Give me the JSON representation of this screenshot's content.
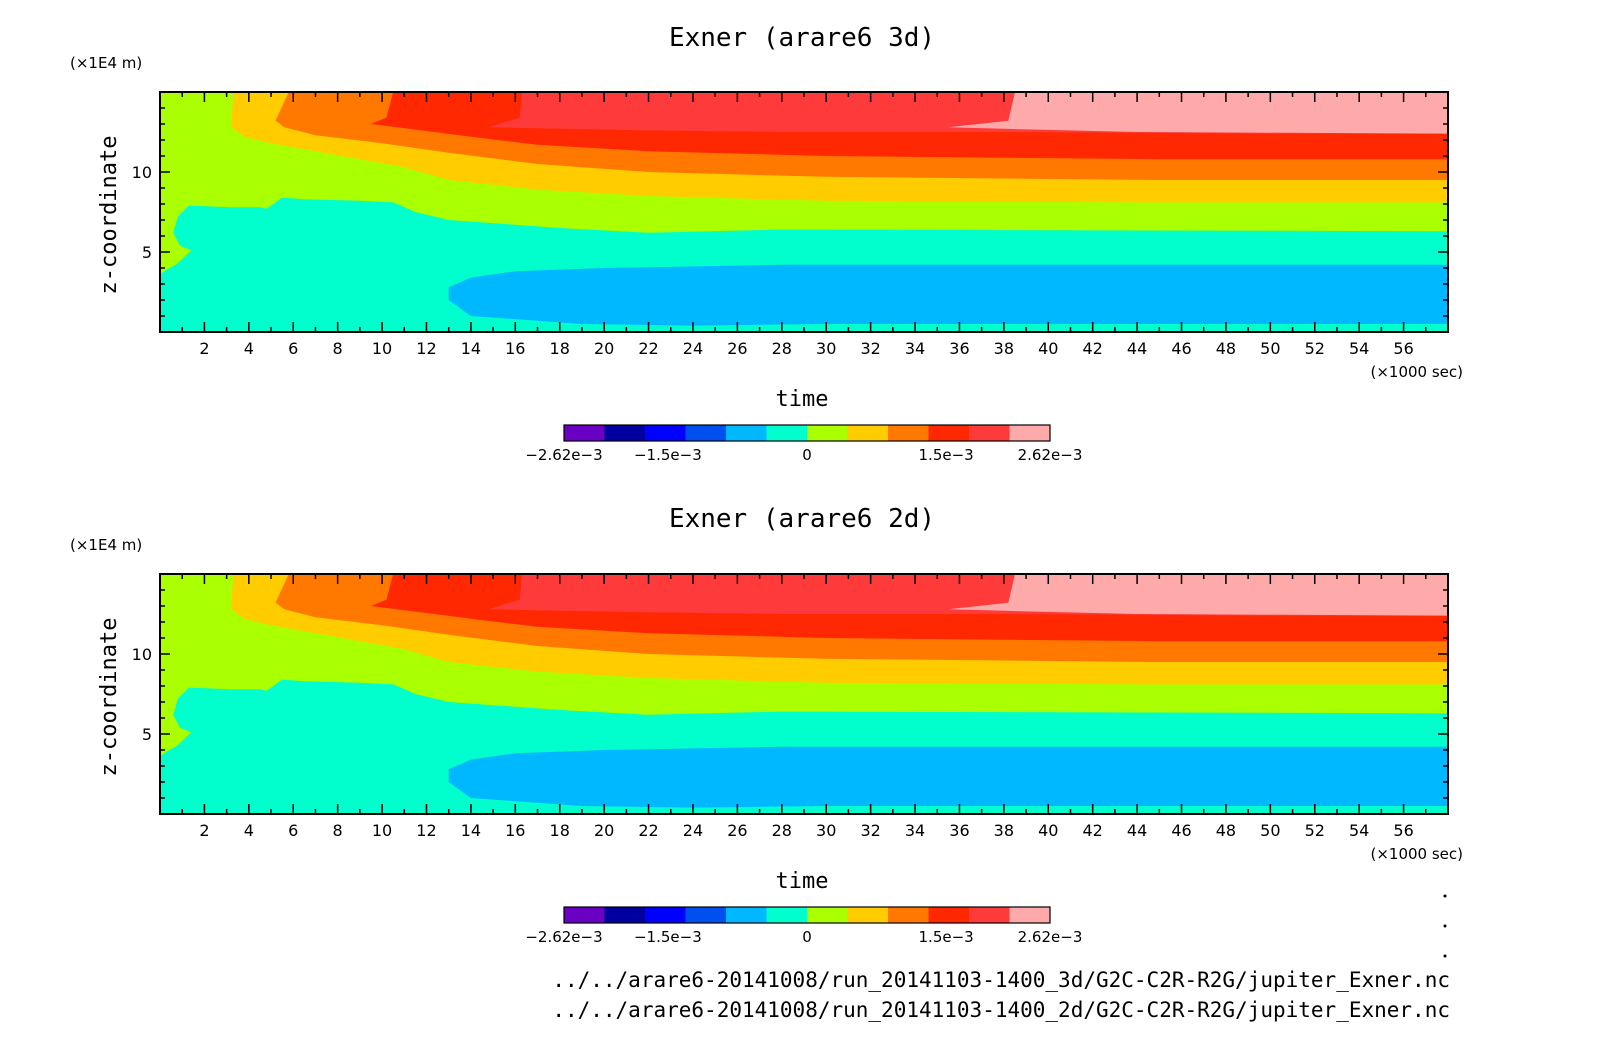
{
  "palette": [
    "#6a00c4",
    "#0000a0",
    "#0000ff",
    "#0050f0",
    "#00b8ff",
    "#00ffcc",
    "#aaff00",
    "#ffcc00",
    "#ff7800",
    "#ff2800",
    "#ff3a3a",
    "#ffaaaa"
  ],
  "chart_data": [
    {
      "type": "heatmap",
      "title": "Exner (arare6 3d)",
      "xlabel": "time",
      "ylabel": "z-coordinate",
      "x_unit": "(×1000 sec)",
      "y_unit": "(×1E4 m)",
      "xlim": [
        0,
        58
      ],
      "ylim": [
        0,
        15
      ],
      "x_ticks": [
        "2",
        "4",
        "6",
        "8",
        "10",
        "12",
        "14",
        "16",
        "18",
        "20",
        "22",
        "24",
        "26",
        "28",
        "30",
        "32",
        "34",
        "36",
        "38",
        "40",
        "42",
        "44",
        "46",
        "48",
        "50",
        "52",
        "54",
        "56"
      ],
      "y_ticks": [
        "5",
        "10"
      ],
      "colorbar": {
        "range": [
          -0.00262,
          0.00262
        ],
        "labels": [
          "-2.62e-3",
          "-1.5e-3",
          "0",
          "1.5e-3",
          "2.62e-3"
        ],
        "level_count": 12
      },
      "bands_by_z_at_t58": [
        {
          "z_from": 0,
          "z_to": 4.2,
          "level": 4
        },
        {
          "z_from": 4.2,
          "z_to": 6.3,
          "level": 5
        },
        {
          "z_from": 6.3,
          "z_to": 8.1,
          "level": 6
        },
        {
          "z_from": 8.1,
          "z_to": 9.5,
          "level": 7
        },
        {
          "z_from": 9.5,
          "z_to": 10.8,
          "level": 8
        },
        {
          "z_from": 10.8,
          "z_to": 12.4,
          "level": 9
        },
        {
          "z_from": 12.4,
          "z_to": 15,
          "level": 11
        }
      ]
    },
    {
      "type": "heatmap",
      "title": "Exner (arare6 2d)",
      "xlabel": "time",
      "ylabel": "z-coordinate",
      "x_unit": "(×1000 sec)",
      "y_unit": "(×1E4 m)",
      "xlim": [
        0,
        58
      ],
      "ylim": [
        0,
        15
      ],
      "x_ticks": [
        "2",
        "4",
        "6",
        "8",
        "10",
        "12",
        "14",
        "16",
        "18",
        "20",
        "22",
        "24",
        "26",
        "28",
        "30",
        "32",
        "34",
        "36",
        "38",
        "40",
        "42",
        "44",
        "46",
        "48",
        "50",
        "52",
        "54",
        "56"
      ],
      "y_ticks": [
        "5",
        "10"
      ],
      "colorbar": {
        "range": [
          -0.00262,
          0.00262
        ],
        "labels": [
          "-2.62e-3",
          "-1.5e-3",
          "0",
          "1.5e-3",
          "2.62e-3"
        ],
        "level_count": 12
      },
      "bands_by_z_at_t58": [
        {
          "z_from": 0,
          "z_to": 4.2,
          "level": 4
        },
        {
          "z_from": 4.2,
          "z_to": 6.3,
          "level": 5
        },
        {
          "z_from": 6.3,
          "z_to": 8.1,
          "level": 6
        },
        {
          "z_from": 8.1,
          "z_to": 9.5,
          "level": 7
        },
        {
          "z_from": 9.5,
          "z_to": 10.8,
          "level": 8
        },
        {
          "z_from": 10.8,
          "z_to": 12.4,
          "level": 9
        },
        {
          "z_from": 12.4,
          "z_to": 15,
          "level": 11
        }
      ]
    }
  ],
  "footer": {
    "path_3d": "../../arare6-20141008/run_20141103-1400_3d/G2C-C2R-R2G/jupiter_Exner.nc",
    "path_2d": "../../arare6-20141008/run_20141103-1400_2d/G2C-C2R-R2G/jupiter_Exner.nc"
  }
}
